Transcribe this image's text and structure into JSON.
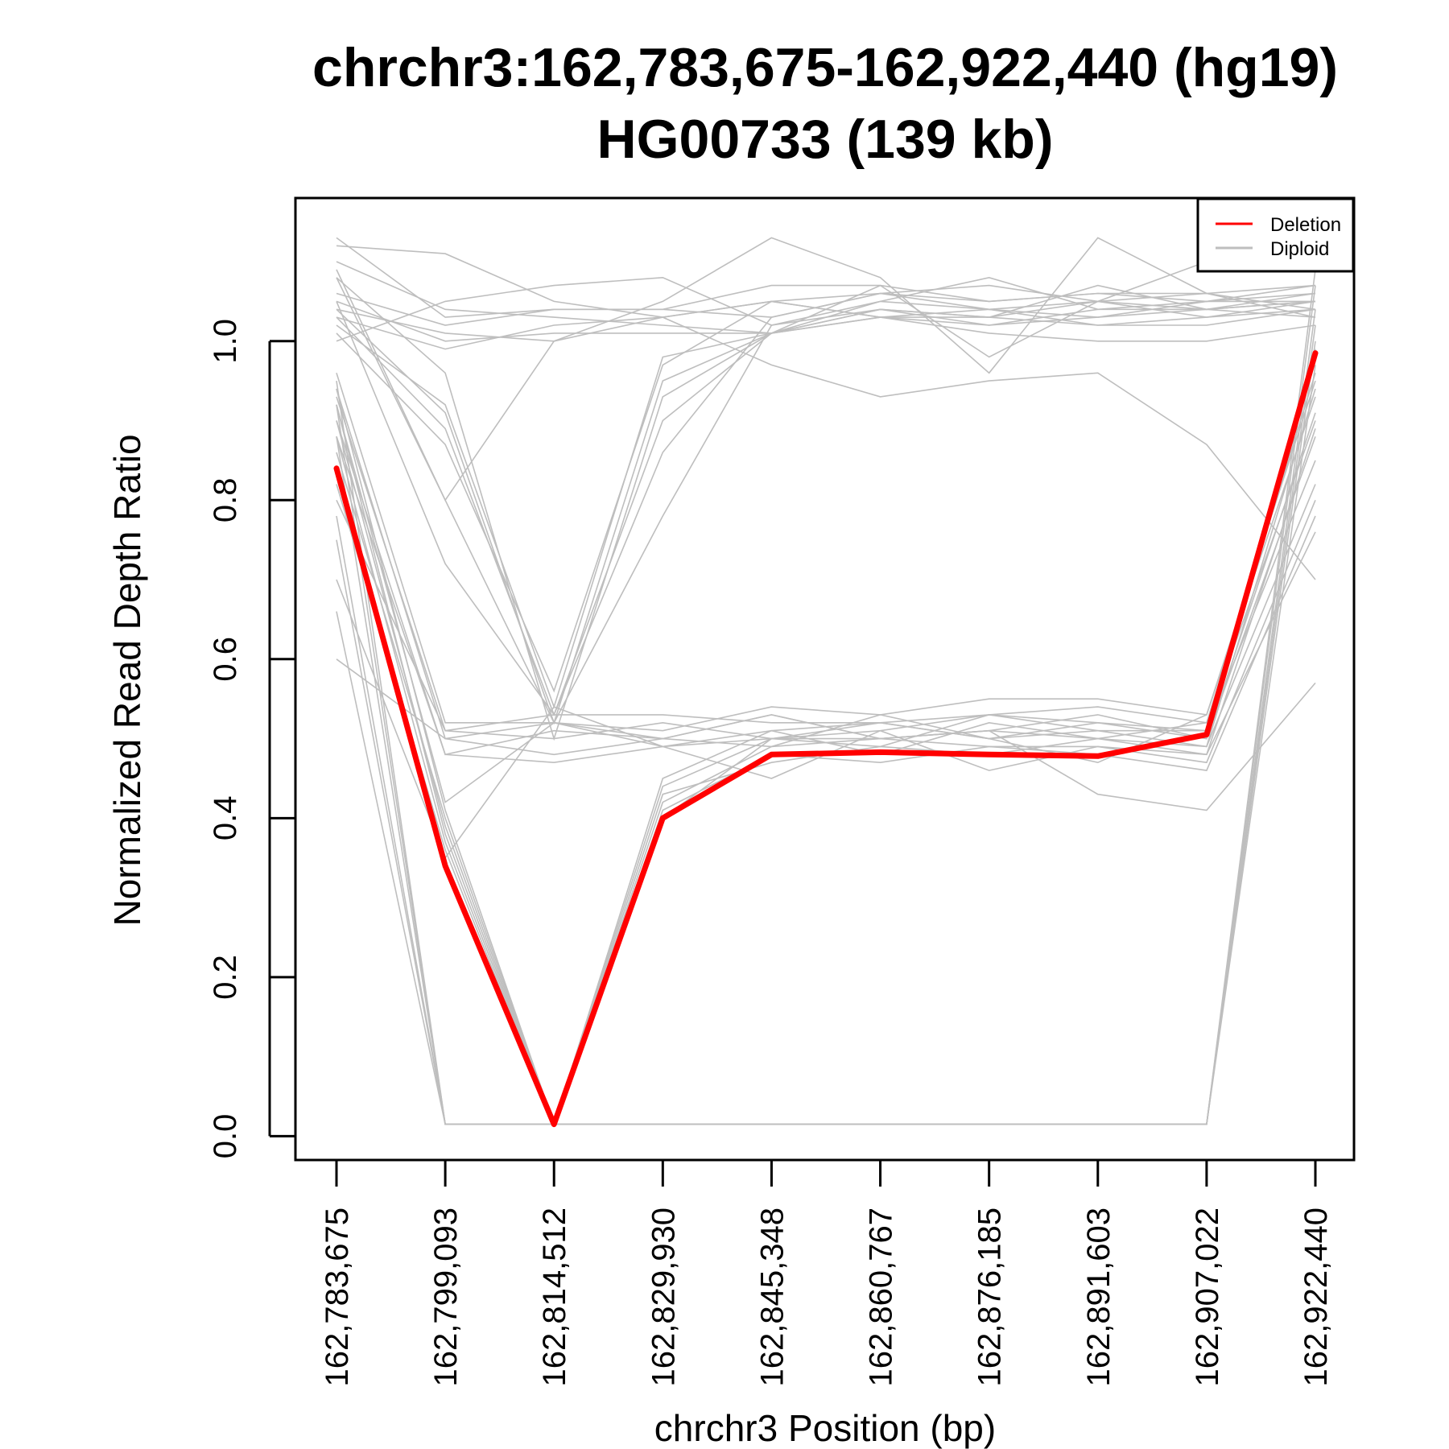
{
  "chart_data": {
    "type": "line",
    "title": "chrchr3:162,783,675-162,922,440 (hg19)",
    "subtitle": "HG00733 (139 kb)",
    "xlabel": "chrchr3 Position (bp)",
    "ylabel": "Normalized Read Depth Ratio",
    "x_tick_labels": [
      "162,783,675",
      "162,799,093",
      "162,814,512",
      "162,829,930",
      "162,845,348",
      "162,860,767",
      "162,876,185",
      "162,891,603",
      "162,907,022",
      "162,922,440"
    ],
    "y_ticks": [
      0.0,
      0.2,
      0.4,
      0.6,
      0.8,
      1.0
    ],
    "y_tick_labels": [
      "0.0",
      "0.2",
      "0.4",
      "0.6",
      "0.8",
      "1.0"
    ],
    "ylim": [
      -0.03,
      1.18
    ],
    "legend": {
      "position": "top-right",
      "entries": [
        {
          "label": "Deletion",
          "color": "#ff0000"
        },
        {
          "label": "Diploid",
          "color": "#bebebe"
        }
      ]
    },
    "colors": {
      "deletion": "#ff0000",
      "diploid": "#bebebe"
    },
    "series": [
      {
        "name": "Deletion",
        "values": [
          0.84,
          0.34,
          0.015,
          0.4,
          0.48,
          0.483,
          0.48,
          0.478,
          0.505,
          0.985
        ]
      }
    ],
    "diploid_series": [
      [
        1.12,
        1.11,
        1.05,
        1.03,
        1.05,
        1.06,
        1.04,
        1.05,
        1.03,
        1.04
      ],
      [
        1.1,
        1.04,
        1.03,
        1.02,
        1.01,
        1.03,
        1.03,
        1.02,
        1.03,
        1.05
      ],
      [
        1.06,
        1.02,
        1.04,
        1.04,
        1.07,
        1.07,
        1.05,
        1.06,
        1.05,
        1.06
      ],
      [
        1.05,
        1.0,
        1.01,
        1.01,
        1.01,
        1.04,
        1.02,
        1.03,
        1.04,
        1.03
      ],
      [
        1.03,
        0.99,
        1.02,
        1.03,
        1.05,
        1.03,
        1.01,
        1.0,
        1.0,
        1.02
      ],
      [
        1.0,
        1.05,
        1.07,
        1.08,
        1.02,
        1.05,
        1.08,
        1.04,
        1.04,
        1.05
      ],
      [
        1.04,
        1.01,
        1.0,
        1.05,
        1.13,
        1.08,
        0.96,
        1.13,
        1.06,
        1.07
      ],
      [
        1.08,
        0.8,
        1.0,
        1.03,
        0.97,
        0.93,
        0.95,
        0.96,
        0.87,
        0.7
      ],
      [
        1.13,
        1.03,
        1.04,
        1.04,
        1.03,
        1.06,
        1.07,
        1.05,
        1.1,
        1.09
      ],
      [
        1.02,
        0.92,
        0.54,
        0.98,
        1.01,
        1.03,
        1.04,
        1.03,
        1.05,
        1.07
      ],
      [
        1.04,
        0.91,
        0.52,
        0.95,
        1.01,
        1.04,
        1.03,
        1.05,
        1.04,
        1.06
      ],
      [
        1.08,
        0.96,
        0.5,
        0.93,
        1.01,
        1.05,
        1.04,
        1.02,
        1.02,
        1.04
      ],
      [
        1.01,
        0.87,
        0.56,
        0.97,
        1.05,
        1.03,
        1.02,
        1.04,
        1.05,
        1.05
      ],
      [
        1.03,
        0.89,
        0.53,
        0.9,
        1.01,
        1.07,
        0.98,
        1.05,
        1.06,
        1.03
      ],
      [
        1.05,
        0.72,
        0.53,
        0.86,
        1.03,
        1.06,
        1.05,
        1.06,
        1.06,
        1.04
      ],
      [
        1.09,
        0.8,
        0.52,
        0.78,
        1.02,
        1.04,
        1.03,
        1.07,
        1.04,
        1.05
      ],
      [
        0.96,
        0.52,
        0.52,
        0.51,
        0.54,
        0.53,
        0.55,
        0.55,
        0.53,
        0.95
      ],
      [
        0.93,
        0.51,
        0.53,
        0.53,
        0.52,
        0.52,
        0.53,
        0.54,
        0.52,
        0.9
      ],
      [
        0.94,
        0.5,
        0.52,
        0.5,
        0.53,
        0.5,
        0.51,
        0.53,
        0.5,
        0.88
      ],
      [
        0.9,
        0.48,
        0.51,
        0.5,
        0.49,
        0.53,
        0.5,
        0.52,
        0.51,
        0.85
      ],
      [
        0.8,
        0.51,
        0.5,
        0.52,
        0.5,
        0.49,
        0.53,
        0.51,
        0.49,
        0.82
      ],
      [
        0.92,
        0.42,
        0.52,
        0.49,
        0.45,
        0.51,
        0.46,
        0.49,
        0.47,
        0.8
      ],
      [
        0.88,
        0.48,
        0.47,
        0.49,
        0.5,
        0.5,
        0.49,
        0.48,
        0.46,
        0.78
      ],
      [
        0.7,
        0.35,
        0.54,
        0.49,
        0.51,
        0.48,
        0.52,
        0.5,
        0.48,
        0.76
      ],
      [
        0.6,
        0.5,
        0.48,
        0.5,
        0.53,
        0.5,
        0.51,
        0.43,
        0.41,
        0.57
      ],
      [
        0.86,
        0.4,
        0.015,
        0.4,
        0.5,
        0.52,
        0.5,
        0.47,
        0.53,
        0.93
      ],
      [
        0.92,
        0.38,
        0.015,
        0.42,
        0.49,
        0.5,
        0.51,
        0.5,
        0.52,
        0.96
      ],
      [
        0.94,
        0.41,
        0.015,
        0.44,
        0.5,
        0.51,
        0.53,
        0.52,
        0.5,
        0.91
      ],
      [
        0.88,
        0.37,
        0.015,
        0.41,
        0.48,
        0.47,
        0.49,
        0.49,
        0.48,
        0.89
      ],
      [
        0.82,
        0.36,
        0.015,
        0.43,
        0.47,
        0.49,
        0.48,
        0.5,
        0.49,
        0.94
      ],
      [
        0.9,
        0.39,
        0.015,
        0.45,
        0.51,
        0.52,
        0.5,
        0.51,
        0.51,
        0.99
      ],
      [
        0.95,
        0.015,
        0.015,
        0.015,
        0.015,
        0.015,
        0.015,
        0.015,
        0.015,
        1.04
      ],
      [
        0.92,
        0.015,
        0.015,
        0.015,
        0.015,
        0.015,
        0.015,
        0.015,
        0.015,
        1.02
      ],
      [
        0.88,
        0.015,
        0.015,
        0.015,
        0.015,
        0.015,
        0.015,
        0.015,
        0.015,
        1.07
      ],
      [
        0.78,
        0.015,
        0.015,
        0.015,
        0.015,
        0.015,
        0.015,
        0.015,
        0.015,
        1.09
      ],
      [
        0.66,
        0.015,
        0.015,
        0.015,
        0.015,
        0.015,
        0.015,
        0.015,
        0.015,
        1.0
      ],
      [
        0.75,
        0.015,
        0.015,
        0.015,
        0.015,
        0.015,
        0.015,
        0.015,
        0.015,
        0.97
      ]
    ]
  }
}
